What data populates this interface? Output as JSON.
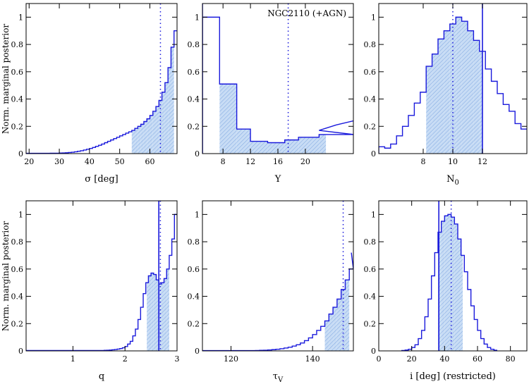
{
  "figure": {
    "ylabel": "Norm. marginal posterior",
    "colors": {
      "line": "#1a1adc",
      "fill": "#c8dcf5",
      "hatch": "#7fa8e0",
      "axis": "#000000"
    }
  },
  "chart_data": [
    {
      "type": "area",
      "xlabel": "σ [deg]",
      "xlim": [
        19,
        69
      ],
      "ylim": [
        0,
        1.1
      ],
      "xticks": [
        20,
        30,
        40,
        50,
        60
      ],
      "yticks": [
        0,
        0.2,
        0.4,
        0.6,
        0.8,
        1
      ],
      "bin_edges": [
        19,
        20,
        21,
        22,
        23,
        24,
        25,
        26,
        27,
        28,
        29,
        30,
        31,
        32,
        33,
        34,
        35,
        36,
        37,
        38,
        39,
        40,
        41,
        42,
        43,
        44,
        45,
        46,
        47,
        48,
        49,
        50,
        51,
        52,
        53,
        54,
        55,
        56,
        57,
        58,
        59,
        60,
        61,
        62,
        63,
        64,
        65,
        66,
        67,
        68,
        69
      ],
      "values": [
        0.002,
        0.002,
        0.002,
        0.002,
        0.002,
        0.002,
        0.002,
        0.002,
        0.003,
        0.003,
        0.003,
        0.004,
        0.005,
        0.006,
        0.008,
        0.01,
        0.013,
        0.017,
        0.021,
        0.026,
        0.032,
        0.038,
        0.045,
        0.053,
        0.061,
        0.07,
        0.08,
        0.09,
        0.1,
        0.11,
        0.12,
        0.13,
        0.14,
        0.15,
        0.16,
        0.17,
        0.185,
        0.2,
        0.215,
        0.235,
        0.255,
        0.28,
        0.31,
        0.345,
        0.39,
        0.45,
        0.52,
        0.63,
        0.78,
        0.9
      ],
      "shade": [
        54,
        68
      ],
      "markers": [
        {
          "x": 63.5,
          "style": "dotted"
        }
      ],
      "annotation": ""
    },
    {
      "type": "area",
      "xlabel": "Y",
      "xlim": [
        5,
        27
      ],
      "ylim": [
        0,
        1.1
      ],
      "xticks": [
        8,
        12,
        16,
        20
      ],
      "yticks": [
        0,
        0.2,
        0.4,
        0.6,
        0.8,
        1
      ],
      "bin_edges": [
        5,
        7.5,
        10,
        12,
        14.5,
        17,
        19,
        22,
        27
      ],
      "values": [
        1.0,
        0.51,
        0.18,
        0.09,
        0.08,
        0.1,
        0.12,
        0.14
      ],
      "tail": [
        {
          "x": 22,
          "y": 0.17
        },
        {
          "x": 24.5,
          "y": 0.21
        },
        {
          "x": 27,
          "y": 0.24
        }
      ],
      "shade": [
        7.5,
        23
      ],
      "markers": [
        {
          "x": 5,
          "style": "solid"
        },
        {
          "x": 17.5,
          "style": "dotted"
        }
      ],
      "annotation": "NGC2110 (+AGN)"
    },
    {
      "type": "area",
      "xlabel": "N0",
      "xlabel_main": "N",
      "xlabel_sub": "0",
      "xlim": [
        5,
        15
      ],
      "ylim": [
        0,
        1.1
      ],
      "xticks": [
        8,
        10,
        12
      ],
      "yticks": [
        0,
        0.2,
        0.4,
        0.6,
        0.8,
        1
      ],
      "bin_edges": [
        5,
        5.4,
        5.8,
        6.2,
        6.6,
        7,
        7.4,
        7.8,
        8.2,
        8.6,
        9,
        9.4,
        9.8,
        10.2,
        10.6,
        11,
        11.4,
        11.8,
        12.2,
        12.6,
        13,
        13.4,
        13.8,
        14.2,
        14.6,
        15
      ],
      "values": [
        0.05,
        0.04,
        0.07,
        0.13,
        0.2,
        0.28,
        0.37,
        0.45,
        0.64,
        0.73,
        0.84,
        0.9,
        0.95,
        1.0,
        0.97,
        0.9,
        0.83,
        0.75,
        0.62,
        0.53,
        0.44,
        0.36,
        0.31,
        0.22,
        0.18
      ],
      "shade": [
        8.2,
        12
      ],
      "markers": [
        {
          "x": 10,
          "style": "dotted"
        },
        {
          "x": 12,
          "style": "solid"
        }
      ],
      "annotation": ""
    },
    {
      "type": "area",
      "xlabel": "q",
      "xlim": [
        0.1,
        3
      ],
      "ylim": [
        0,
        1.1
      ],
      "xticks": [
        1,
        2,
        3
      ],
      "yticks": [
        0,
        0.2,
        0.4,
        0.6,
        0.8,
        1
      ],
      "bin_edges": [
        0.1,
        0.15,
        0.2,
        0.25,
        0.3,
        0.35,
        0.4,
        0.45,
        0.5,
        0.55,
        0.6,
        0.65,
        0.7,
        0.75,
        0.8,
        0.85,
        0.9,
        0.95,
        1.0,
        1.05,
        1.1,
        1.15,
        1.2,
        1.25,
        1.3,
        1.35,
        1.4,
        1.45,
        1.5,
        1.55,
        1.6,
        1.65,
        1.7,
        1.75,
        1.8,
        1.85,
        1.9,
        1.95,
        2.0,
        2.05,
        2.1,
        2.15,
        2.2,
        2.25,
        2.3,
        2.35,
        2.4,
        2.45,
        2.5,
        2.55,
        2.6,
        2.65,
        2.7,
        2.75,
        2.8,
        2.85,
        2.9,
        2.95,
        3.0
      ],
      "values": [
        0.003,
        0.003,
        0.003,
        0.003,
        0.003,
        0.003,
        0.003,
        0.003,
        0.003,
        0.003,
        0.003,
        0.003,
        0.003,
        0.003,
        0.003,
        0.003,
        0.003,
        0.003,
        0.003,
        0.003,
        0.003,
        0.003,
        0.003,
        0.003,
        0.003,
        0.003,
        0.003,
        0.003,
        0.003,
        0.003,
        0.004,
        0.005,
        0.006,
        0.008,
        0.01,
        0.013,
        0.017,
        0.023,
        0.032,
        0.05,
        0.07,
        0.11,
        0.16,
        0.23,
        0.32,
        0.42,
        0.5,
        0.55,
        0.57,
        0.56,
        0.52,
        0.49,
        0.5,
        0.53,
        0.6,
        0.7,
        0.82,
        1.0
      ],
      "shade": [
        2.42,
        2.85
      ],
      "markers": [
        {
          "x": 2.65,
          "style": "solid"
        },
        {
          "x": 2.68,
          "style": "dotted"
        }
      ],
      "annotation": ""
    },
    {
      "type": "area",
      "xlabel": "τV",
      "xlabel_main": "τ",
      "xlabel_sub": "V",
      "xlim": [
        113,
        150
      ],
      "ylim": [
        0,
        1.1
      ],
      "xticks": [
        120,
        140
      ],
      "yticks": [
        0,
        0.2,
        0.4,
        0.6,
        0.8,
        1
      ],
      "bin_edges": [
        113,
        114,
        115,
        116,
        117,
        118,
        119,
        120,
        121,
        122,
        123,
        124,
        125,
        126,
        127,
        128,
        129,
        130,
        131,
        132,
        133,
        134,
        135,
        136,
        137,
        138,
        139,
        140,
        141,
        142,
        143,
        144,
        145,
        146,
        147,
        148,
        149,
        150
      ],
      "values": [
        0.002,
        0.002,
        0.002,
        0.002,
        0.002,
        0.002,
        0.002,
        0.002,
        0.002,
        0.002,
        0.002,
        0.002,
        0.002,
        0.003,
        0.004,
        0.005,
        0.007,
        0.009,
        0.012,
        0.016,
        0.021,
        0.027,
        0.035,
        0.045,
        0.058,
        0.075,
        0.095,
        0.12,
        0.15,
        0.18,
        0.22,
        0.27,
        0.32,
        0.38,
        0.45,
        0.52,
        0.6
      ],
      "tail": [
        {
          "x": 149.5,
          "y": 0.72
        }
      ],
      "shade": [
        143,
        149
      ],
      "markers": [
        {
          "x": 147.5,
          "style": "dotted"
        }
      ],
      "annotation": ""
    },
    {
      "type": "area",
      "xlabel": "i [deg] (restricted)",
      "xlim": [
        0,
        90
      ],
      "ylim": [
        0,
        1.1
      ],
      "xticks": [
        0,
        20,
        40,
        60,
        80
      ],
      "yticks": [
        0,
        0.2,
        0.4,
        0.6,
        0.8,
        1
      ],
      "bin_edges": [
        14,
        16,
        18,
        20,
        22,
        24,
        26,
        28,
        30,
        32,
        34,
        36,
        38,
        40,
        42,
        44,
        46,
        48,
        50,
        52,
        54,
        56,
        58,
        60,
        62,
        64,
        66,
        68,
        70,
        72
      ],
      "values": [
        0.003,
        0.006,
        0.012,
        0.025,
        0.045,
        0.09,
        0.15,
        0.25,
        0.38,
        0.55,
        0.72,
        0.87,
        0.95,
        0.99,
        1.0,
        0.98,
        0.93,
        0.82,
        0.7,
        0.58,
        0.45,
        0.33,
        0.23,
        0.15,
        0.09,
        0.05,
        0.025,
        0.012,
        0.005
      ],
      "shade": [
        36,
        51
      ],
      "markers": [
        {
          "x": 36.5,
          "style": "solid"
        },
        {
          "x": 44,
          "style": "dotted"
        }
      ],
      "annotation": ""
    }
  ]
}
